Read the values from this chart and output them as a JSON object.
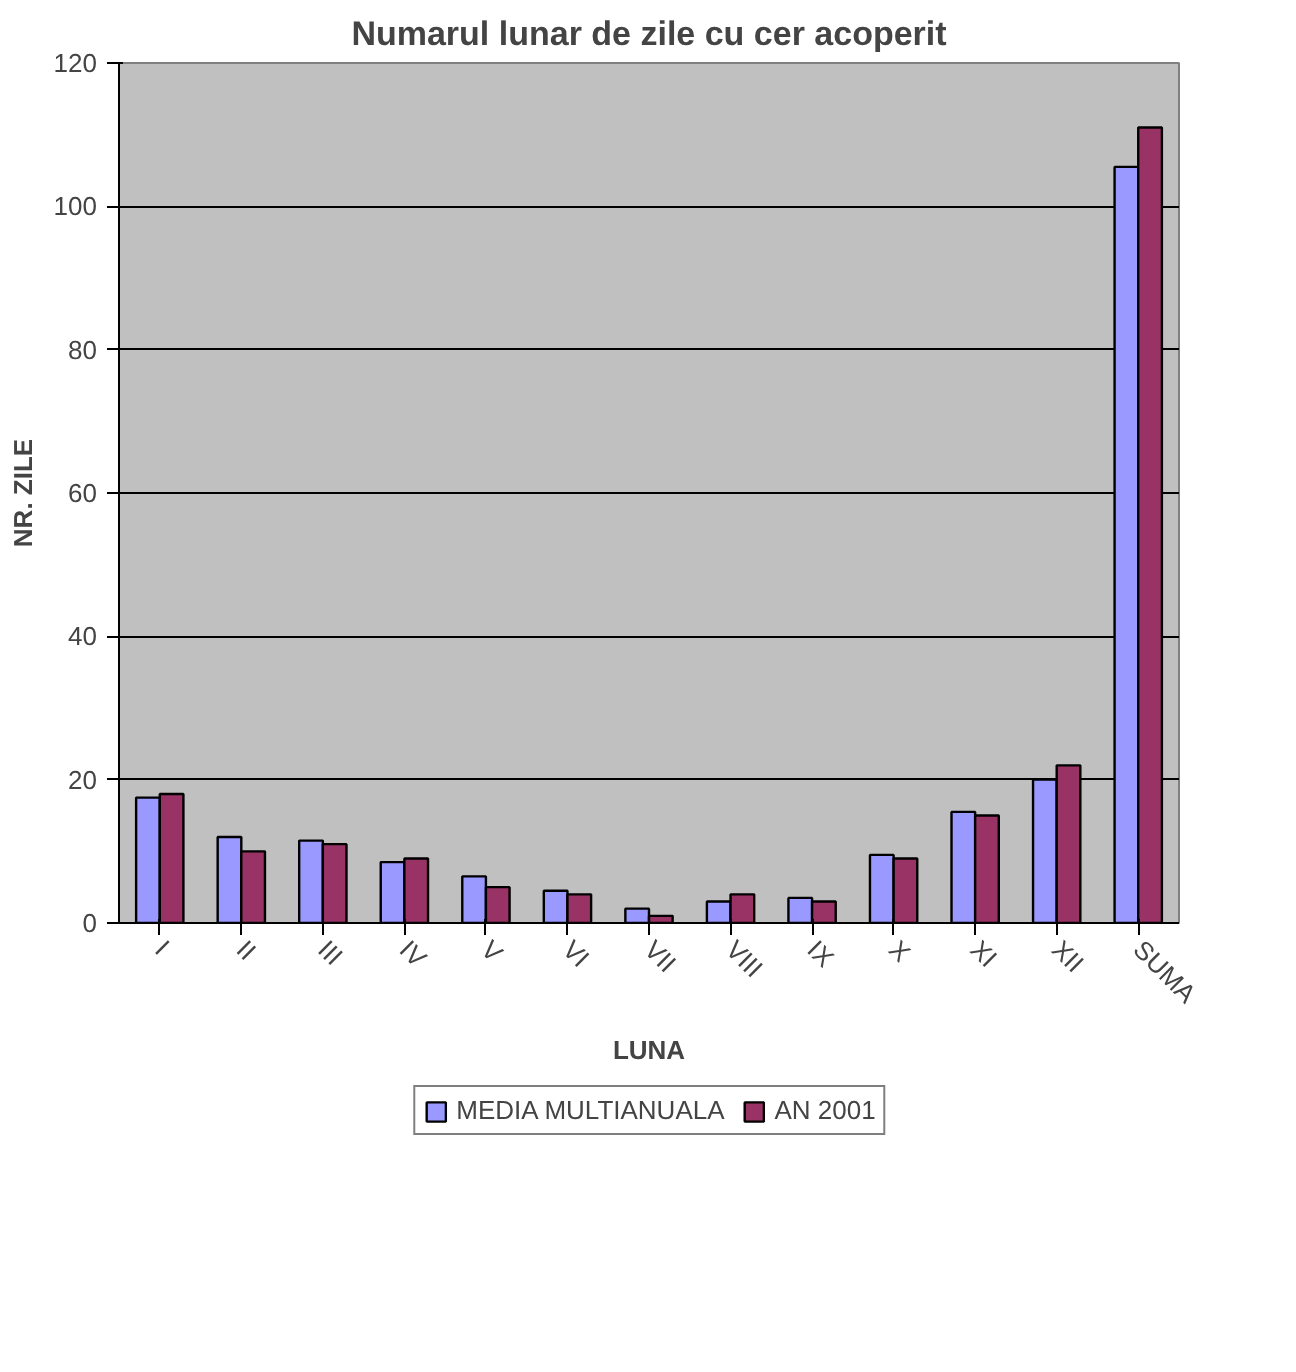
{
  "chart_data": {
    "type": "bar",
    "title": "Numarul lunar de zile cu cer acoperit",
    "xlabel": "LUNA",
    "ylabel": "NR. ZILE",
    "categories": [
      "I",
      "II",
      "III",
      "IV",
      "V",
      "VI",
      "VII",
      "VIII",
      "IX",
      "X",
      "XI",
      "XII",
      "SUMA"
    ],
    "series": [
      {
        "name": "MEDIA MULTIANUALA",
        "color": "#9999ff",
        "values": [
          17.5,
          12,
          11.5,
          8.5,
          6.5,
          4.5,
          2,
          3,
          3.5,
          9.5,
          15.5,
          20,
          105.5
        ]
      },
      {
        "name": "AN 2001",
        "color": "#993366",
        "values": [
          18,
          10,
          11,
          9,
          5,
          4,
          1,
          4,
          3,
          9,
          15,
          22,
          111
        ]
      }
    ],
    "ylim": [
      0,
      120
    ],
    "yticks": [
      0,
      20,
      40,
      60,
      80,
      100,
      120
    ],
    "grid": "y",
    "legend": "bottom"
  }
}
